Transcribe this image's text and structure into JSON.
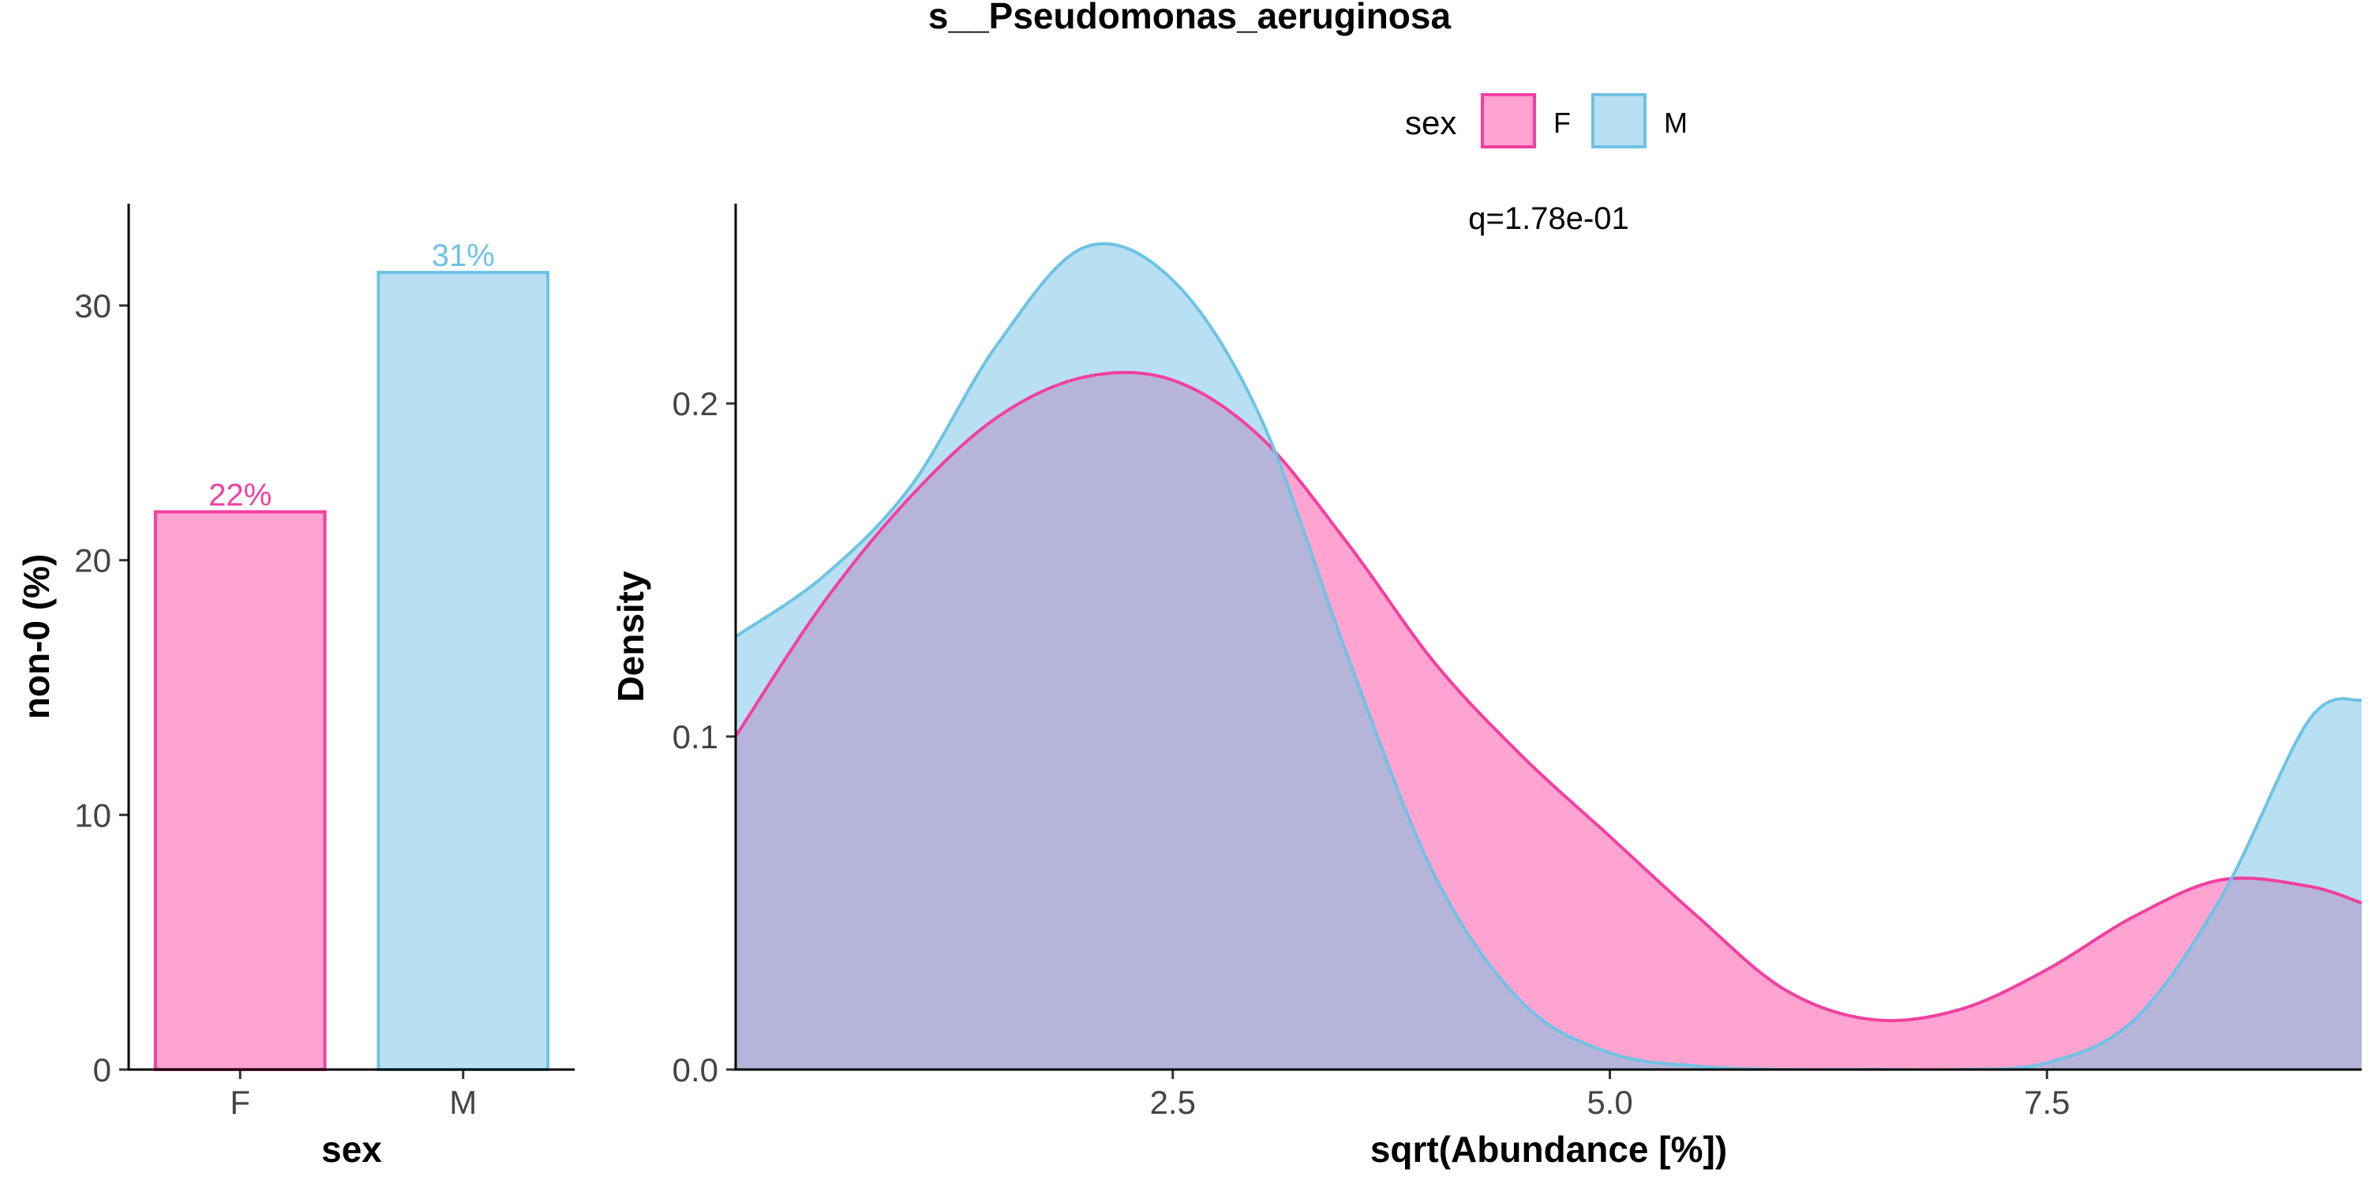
{
  "title": "s__Pseudomonas_aeruginosa",
  "legend": {
    "title": "sex",
    "entries": [
      {
        "label": "F",
        "fill": "#FFA3D1",
        "stroke": "#F23FA0"
      },
      {
        "label": "M",
        "fill": "#B8E0F2",
        "stroke": "#6EC3E4"
      }
    ],
    "placement": "top"
  },
  "colors": {
    "F_fill": "#FFA3D1",
    "F_stroke": "#F23FA0",
    "M_fill": "#B8E0F2",
    "M_stroke": "#6EC3E4",
    "overlap": "#B7B4DA"
  },
  "chart_data": [
    {
      "type": "bar",
      "categories": [
        "F",
        "M"
      ],
      "values": [
        21.9,
        31.3
      ],
      "data_labels": [
        "22%",
        "31%"
      ],
      "xlabel": "sex",
      "ylabel": "non-0 (%)",
      "ylim": [
        0,
        34
      ],
      "yticks": [
        0,
        10,
        20,
        30
      ],
      "ytick_labels": [
        "0",
        "10",
        "20",
        "30"
      ],
      "grid": false
    },
    {
      "type": "area",
      "x": [
        0.0,
        0.5,
        1.0,
        1.5,
        2.0,
        2.5,
        3.0,
        3.5,
        4.0,
        4.5,
        5.0,
        5.5,
        6.0,
        6.5,
        7.0,
        7.5,
        8.0,
        8.5,
        9.0,
        9.3
      ],
      "series": [
        {
          "name": "F",
          "values": [
            0.1,
            0.14,
            0.172,
            0.196,
            0.208,
            0.207,
            0.19,
            0.158,
            0.122,
            0.094,
            0.07,
            0.046,
            0.024,
            0.015,
            0.018,
            0.03,
            0.046,
            0.057,
            0.055,
            0.05
          ]
        },
        {
          "name": "M",
          "values": [
            0.13,
            0.148,
            0.175,
            0.218,
            0.247,
            0.237,
            0.196,
            0.124,
            0.058,
            0.02,
            0.005,
            0.001,
            0.0,
            0.0,
            0.0,
            0.002,
            0.015,
            0.052,
            0.105,
            0.111
          ]
        }
      ],
      "annotation": "q=1.78e-01",
      "xlabel": "sqrt(Abundance [%])",
      "ylabel": "Density",
      "xlim": [
        0.0,
        9.3
      ],
      "ylim": [
        0,
        0.26
      ],
      "xticks": [
        2.5,
        5.0,
        7.5
      ],
      "xtick_labels": [
        "2.5",
        "5.0",
        "7.5"
      ],
      "yticks": [
        0.0,
        0.1,
        0.2
      ],
      "ytick_labels": [
        "0.0",
        "0.1",
        "0.2"
      ],
      "grid": false
    }
  ]
}
